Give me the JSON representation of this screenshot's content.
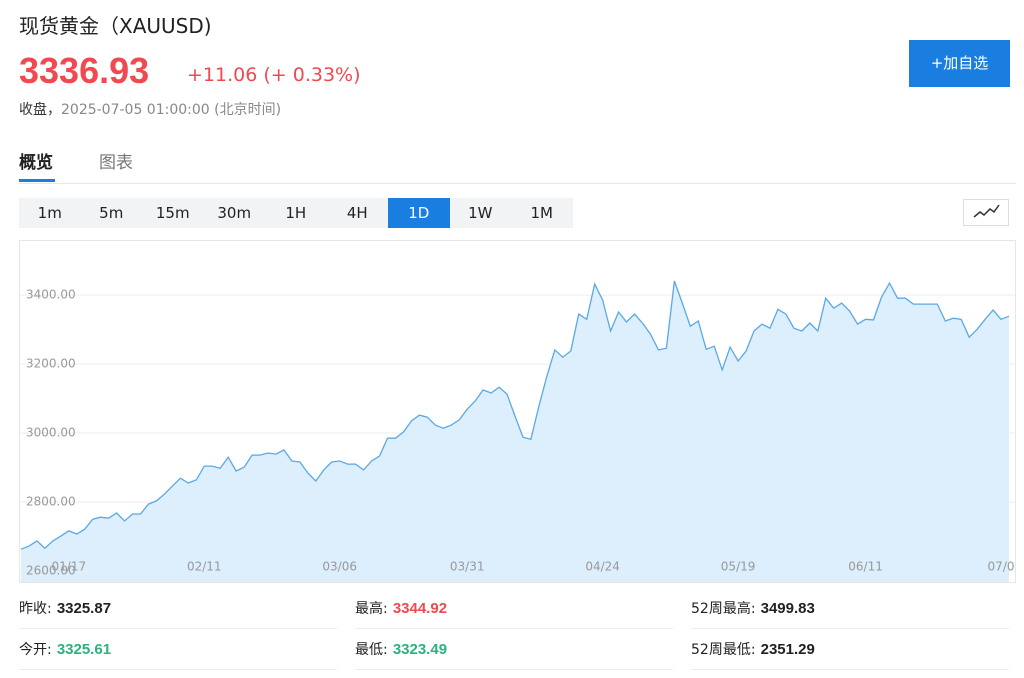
{
  "header": {
    "title": "现货黄金（XAUUSD)",
    "price": "3336.93",
    "change": "+11.06",
    "change_pct": "(+ 0.33%)",
    "status": "收盘，",
    "time": "2025-07-05 01:00:00",
    "timezone": "(北京时间)",
    "button": "+加自选"
  },
  "tabs": [
    "概览",
    "图表"
  ],
  "periods": [
    "1m",
    "5m",
    "15m",
    "30m",
    "1H",
    "4H",
    "1D",
    "1W",
    "1M"
  ],
  "active_period": 6,
  "stats": [
    [
      {
        "label": "昨收:",
        "value": "3325.87"
      },
      {
        "label": "最高:",
        "value": "3344.92"
      },
      {
        "label": "52周最高:",
        "value": "3499.83"
      }
    ],
    [
      {
        "label": "今开:",
        "value": "3325.61"
      },
      {
        "label": "最低:",
        "value": "3323.49"
      },
      {
        "label": "52周最低:",
        "value": "2351.29"
      }
    ]
  ],
  "chart_data": {
    "type": "area",
    "color": "#5aa9e6",
    "fill": "#ddeefc",
    "grid": true,
    "ylim": [
      2565,
      3557
    ],
    "yticks": [
      {
        "value": 2600,
        "label": "2600.00"
      },
      {
        "value": 2800,
        "label": "2800.00"
      },
      {
        "value": 3000,
        "label": "3000.00"
      },
      {
        "value": 3200,
        "label": "3200.00"
      },
      {
        "value": 3400,
        "label": "3400.00"
      }
    ],
    "categories": [
      null,
      null,
      null,
      null,
      null,
      null,
      "01/17",
      null,
      null,
      null,
      null,
      null,
      null,
      null,
      null,
      null,
      null,
      null,
      null,
      null,
      null,
      null,
      null,
      "02/11",
      null,
      null,
      null,
      null,
      null,
      null,
      null,
      null,
      null,
      null,
      null,
      null,
      null,
      null,
      null,
      null,
      "03/06",
      null,
      null,
      null,
      null,
      null,
      null,
      null,
      null,
      null,
      null,
      null,
      null,
      null,
      null,
      null,
      "03/31",
      null,
      null,
      null,
      null,
      null,
      null,
      null,
      null,
      null,
      null,
      null,
      null,
      null,
      null,
      null,
      null,
      "04/24",
      null,
      null,
      null,
      null,
      null,
      null,
      null,
      null,
      null,
      null,
      null,
      null,
      null,
      null,
      null,
      null,
      "05/19",
      null,
      null,
      null,
      null,
      null,
      null,
      null,
      null,
      null,
      null,
      null,
      null,
      null,
      null,
      null,
      "06/11",
      null,
      null,
      null,
      null,
      null,
      null,
      null,
      null,
      null,
      null,
      null,
      null,
      null,
      null,
      null,
      null,
      "07/0",
      null
    ],
    "values": [
      2663,
      2672,
      2687,
      2666,
      2687,
      2701,
      2716,
      2707,
      2721,
      2750,
      2756,
      2753,
      2768,
      2745,
      2765,
      2765,
      2794,
      2803,
      2823,
      2846,
      2869,
      2855,
      2864,
      2904,
      2904,
      2898,
      2930,
      2890,
      2901,
      2936,
      2936,
      2942,
      2939,
      2951,
      2919,
      2916,
      2884,
      2861,
      2893,
      2916,
      2919,
      2910,
      2910,
      2893,
      2919,
      2933,
      2985,
      2985,
      3003,
      3035,
      3052,
      3046,
      3023,
      3014,
      3023,
      3038,
      3069,
      3093,
      3125,
      3116,
      3133,
      3113,
      3049,
      2988,
      2982,
      3078,
      3165,
      3241,
      3220,
      3238,
      3345,
      3330,
      3432,
      3386,
      3296,
      3351,
      3322,
      3345,
      3319,
      3287,
      3241,
      3246,
      3441,
      3377,
      3310,
      3325,
      3243,
      3252,
      3183,
      3249,
      3209,
      3238,
      3296,
      3316,
      3304,
      3359,
      3345,
      3304,
      3296,
      3319,
      3296,
      3391,
      3362,
      3377,
      3354,
      3316,
      3330,
      3328,
      3394,
      3435,
      3391,
      3391,
      3374,
      3374,
      3374,
      3374,
      3325,
      3333,
      3330,
      3278,
      3301,
      3330,
      3357,
      3330,
      3339
    ]
  }
}
